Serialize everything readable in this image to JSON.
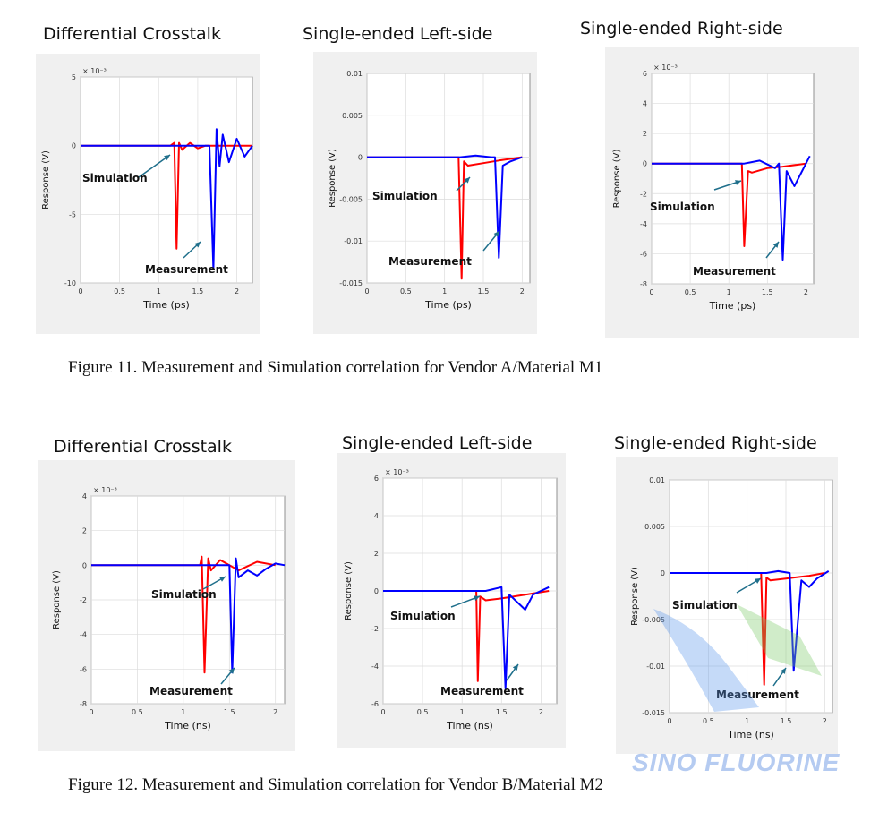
{
  "figures": [
    {
      "caption": "Figure 11.  Measurement and Simulation correlation for Vendor A/Material M1",
      "panels": [
        {
          "title": "Differential Crosstalk",
          "xlabel": "Time (ps)",
          "ylabel": "Response (V)",
          "exponent": "× 10⁻³",
          "yticks": [
            "5",
            "0",
            "-5",
            "-10"
          ],
          "xticks": [
            "0",
            "0.5",
            "1",
            "1.5",
            "2"
          ],
          "sim_label": "Simulation",
          "meas_label": "Measurement"
        },
        {
          "title": "Single-ended Left-side",
          "xlabel": "Time (ps)",
          "ylabel": "Response (V)",
          "exponent": "",
          "yticks": [
            "0.01",
            "0.005",
            "0",
            "-0.005",
            "-0.01",
            "-0.015"
          ],
          "xticks": [
            "0",
            "0.5",
            "1",
            "1.5",
            "2"
          ],
          "sim_label": "Simulation",
          "meas_label": "Measurement"
        },
        {
          "title": "Single-ended Right-side",
          "xlabel": "Time (ps)",
          "ylabel": "Response (V)",
          "exponent": "× 10⁻³",
          "yticks": [
            "6",
            "4",
            "2",
            "0",
            "-2",
            "-4",
            "-6",
            "-8"
          ],
          "xticks": [
            "0",
            "0.5",
            "1",
            "1.5",
            "2"
          ],
          "sim_label": "Simulation",
          "meas_label": "Measurement"
        }
      ]
    },
    {
      "caption": "Figure 12.  Measurement and Simulation correlation for Vendor B/Material M2",
      "panels": [
        {
          "title": "Differential Crosstalk",
          "xlabel": "Time (ns)",
          "ylabel": "Response (V)",
          "exponent": "× 10⁻³",
          "yticks": [
            "4",
            "2",
            "0",
            "-2",
            "-4",
            "-6",
            "-8"
          ],
          "xticks": [
            "0",
            "0.5",
            "1",
            "1.5",
            "2"
          ],
          "sim_label": "Simulation",
          "meas_label": "Measurement"
        },
        {
          "title": "Single-ended Left-side",
          "xlabel": "Time (ns)",
          "ylabel": "Response (V)",
          "exponent": "× 10⁻³",
          "yticks": [
            "6",
            "4",
            "2",
            "0",
            "-2",
            "-4",
            "-6"
          ],
          "xticks": [
            "0",
            "0.5",
            "1",
            "1.5",
            "2"
          ],
          "sim_label": "Simulation",
          "meas_label": "Measurement"
        },
        {
          "title": "Single-ended Right-side",
          "xlabel": "Time (ns)",
          "ylabel": "Response (V)",
          "exponent": "",
          "yticks": [
            "0.01",
            "0.005",
            "0",
            "-0.005",
            "-0.01",
            "-0.015"
          ],
          "xticks": [
            "0",
            "0.5",
            "1",
            "1.5",
            "2"
          ],
          "sim_label": "Simulation",
          "meas_label": "Measurement"
        }
      ]
    }
  ],
  "watermark": "SINO FLUORINE",
  "colors": {
    "simulation": "#ff0000",
    "measurement": "#0000ff",
    "arrow": "#1f6f8b"
  },
  "chart_data": [
    {
      "type": "line",
      "title": "Differential Crosstalk",
      "xlabel": "Time (ps)",
      "ylabel": "Response (V)",
      "ylim": [
        -0.01,
        0.005
      ],
      "xlim": [
        0,
        2.2
      ],
      "series": [
        {
          "name": "Simulation",
          "x": [
            0,
            1.15,
            1.2,
            1.23,
            1.26,
            1.3,
            1.4,
            1.5,
            1.6,
            1.7,
            2.2
          ],
          "y": [
            0,
            0,
            0.0002,
            -0.0075,
            0.0002,
            -0.0003,
            0.0002,
            -0.0002,
            0,
            0,
            0
          ]
        },
        {
          "name": "Measurement",
          "x": [
            0,
            1.65,
            1.7,
            1.74,
            1.78,
            1.82,
            1.9,
            2.0,
            2.1,
            2.2
          ],
          "y": [
            0,
            0,
            -0.009,
            0.0012,
            -0.0015,
            0.0008,
            -0.0012,
            0.0005,
            -0.0008,
            0
          ]
        }
      ]
    },
    {
      "type": "line",
      "title": "Single-ended Left-side",
      "xlabel": "Time (ps)",
      "ylabel": "Response (V)",
      "ylim": [
        -0.015,
        0.01
      ],
      "xlim": [
        0,
        2.1
      ],
      "series": [
        {
          "name": "Simulation",
          "x": [
            0,
            1.18,
            1.22,
            1.25,
            1.3,
            1.5,
            1.7,
            2.0
          ],
          "y": [
            0,
            0,
            -0.0145,
            -0.0005,
            -0.001,
            -0.0007,
            -0.0004,
            0
          ]
        },
        {
          "name": "Measurement",
          "x": [
            0,
            1.2,
            1.4,
            1.6,
            1.65,
            1.7,
            1.75,
            1.85,
            2.0
          ],
          "y": [
            0,
            0,
            0.0002,
            0,
            0,
            -0.012,
            -0.001,
            -0.0005,
            0
          ]
        }
      ]
    },
    {
      "type": "line",
      "title": "Single-ended Right-side",
      "xlabel": "Time (ps)",
      "ylabel": "Response (V)",
      "ylim": [
        -0.008,
        0.006
      ],
      "xlim": [
        0,
        2.1
      ],
      "series": [
        {
          "name": "Simulation",
          "x": [
            0,
            1.17,
            1.2,
            1.25,
            1.3,
            1.5,
            1.7,
            2.0
          ],
          "y": [
            0,
            0,
            -0.0055,
            -0.0005,
            -0.0006,
            -0.0003,
            -0.0002,
            0
          ]
        },
        {
          "name": "Measurement",
          "x": [
            0,
            1.2,
            1.4,
            1.6,
            1.65,
            1.7,
            1.75,
            1.85,
            2.05
          ],
          "y": [
            0,
            0,
            0.0002,
            -0.0003,
            0,
            -0.0064,
            -0.0005,
            -0.0015,
            0.0005
          ]
        }
      ]
    },
    {
      "type": "line",
      "title": "Differential Crosstalk",
      "xlabel": "Time (ns)",
      "ylabel": "Response (V)",
      "ylim": [
        -0.008,
        0.004
      ],
      "xlim": [
        0,
        2.1
      ],
      "series": [
        {
          "name": "Simulation",
          "x": [
            0,
            1.18,
            1.2,
            1.23,
            1.27,
            1.3,
            1.4,
            1.6,
            1.8,
            2.0
          ],
          "y": [
            0,
            0,
            0.0005,
            -0.0062,
            0.0004,
            -0.0003,
            0.0003,
            -0.0003,
            0.0002,
            0
          ]
        },
        {
          "name": "Measurement",
          "x": [
            0,
            1.5,
            1.53,
            1.57,
            1.6,
            1.7,
            1.8,
            1.9,
            2.0,
            2.1
          ],
          "y": [
            0,
            0,
            -0.0062,
            0.0004,
            -0.0007,
            -0.0003,
            -0.0006,
            -0.0002,
            0.0001,
            0
          ]
        }
      ]
    },
    {
      "type": "line",
      "title": "Single-ended Left-side",
      "xlabel": "Time (ns)",
      "ylabel": "Response (V)",
      "ylim": [
        -0.006,
        0.006
      ],
      "xlim": [
        0,
        2.2
      ],
      "series": [
        {
          "name": "Simulation",
          "x": [
            0,
            1.18,
            1.2,
            1.23,
            1.3,
            1.5,
            1.8,
            2.1
          ],
          "y": [
            0,
            0,
            -0.0048,
            -0.0003,
            -0.0005,
            -0.0004,
            -0.0002,
            0
          ]
        },
        {
          "name": "Measurement",
          "x": [
            0,
            1.3,
            1.5,
            1.55,
            1.6,
            1.7,
            1.8,
            1.9,
            2.1
          ],
          "y": [
            0,
            0,
            0.0002,
            -0.0052,
            -0.0002,
            -0.0006,
            -0.001,
            -0.0002,
            0.0002
          ]
        }
      ]
    },
    {
      "type": "line",
      "title": "Single-ended Right-side",
      "xlabel": "Time (ns)",
      "ylabel": "Response (V)",
      "ylim": [
        -0.015,
        0.01
      ],
      "xlim": [
        0,
        2.1
      ],
      "series": [
        {
          "name": "Simulation",
          "x": [
            0,
            1.18,
            1.22,
            1.25,
            1.3,
            1.5,
            1.8,
            2.0
          ],
          "y": [
            0,
            0,
            -0.012,
            -0.0005,
            -0.0008,
            -0.0006,
            -0.0003,
            0
          ]
        },
        {
          "name": "Measurement",
          "x": [
            0,
            1.25,
            1.4,
            1.55,
            1.6,
            1.7,
            1.8,
            1.9,
            2.05
          ],
          "y": [
            0,
            0,
            0.0002,
            0,
            -0.0105,
            -0.0008,
            -0.0015,
            -0.0006,
            0.0002
          ]
        }
      ]
    }
  ]
}
